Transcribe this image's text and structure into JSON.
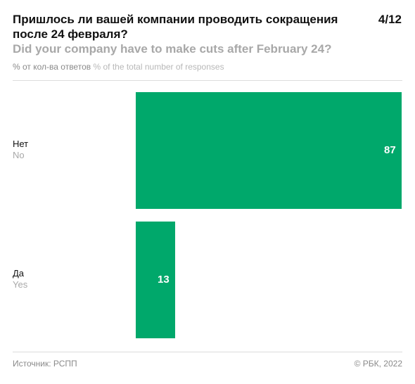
{
  "header": {
    "title_ru": "Пришлось ли вашей компании проводить сокращения после 24 февраля?",
    "title_en": "Did your company have to make cuts after February 24?",
    "counter": "4/12",
    "units_ru": "% от кол-ва ответов",
    "units_en": "% of the total number of responses"
  },
  "footer": {
    "source": "Источник: РСПП",
    "copyright": "© РБК, 2022"
  },
  "colors": {
    "bar": "#00a86b",
    "title_secondary": "#a8a8a8"
  },
  "chart_data": {
    "type": "bar",
    "orientation": "horizontal",
    "categories": [
      "Нет / No",
      "Да / Yes"
    ],
    "category_labels": [
      {
        "ru": "Нет",
        "en": "No"
      },
      {
        "ru": "Да",
        "en": "Yes"
      }
    ],
    "values": [
      87,
      13
    ],
    "value_labels": [
      "87",
      "13"
    ],
    "xlim": [
      0,
      87
    ],
    "grid": false,
    "legend": "none"
  }
}
